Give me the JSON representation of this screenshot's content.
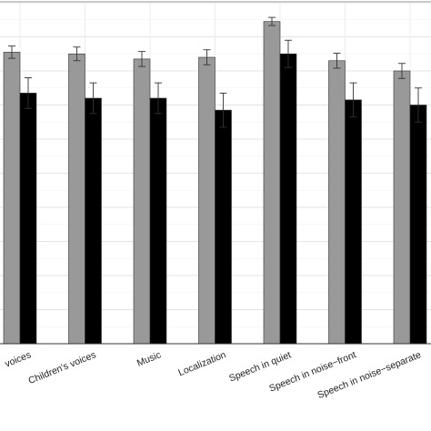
{
  "chart_data": {
    "type": "bar",
    "title": "",
    "xlabel": "",
    "ylabel": "",
    "categories": [
      "voices",
      "Children's voices",
      "Music",
      "Localization",
      "Speech in quiet",
      "Speech in noise−front",
      "Speech in noise−separate"
    ],
    "series": [
      {
        "color": "#999999",
        "values": [
          8.55,
          8.5,
          8.35,
          8.4,
          9.45,
          8.3,
          8.0
        ],
        "errors": [
          0.18,
          0.2,
          0.22,
          0.22,
          0.12,
          0.22,
          0.22
        ]
      },
      {
        "color": "#000000",
        "values": [
          7.35,
          7.2,
          7.2,
          6.85,
          8.5,
          7.15,
          7.0
        ],
        "errors": [
          0.45,
          0.45,
          0.45,
          0.5,
          0.4,
          0.5,
          0.5
        ]
      }
    ],
    "ylim": [
      0,
      10
    ],
    "grid": true,
    "legend": "none"
  }
}
